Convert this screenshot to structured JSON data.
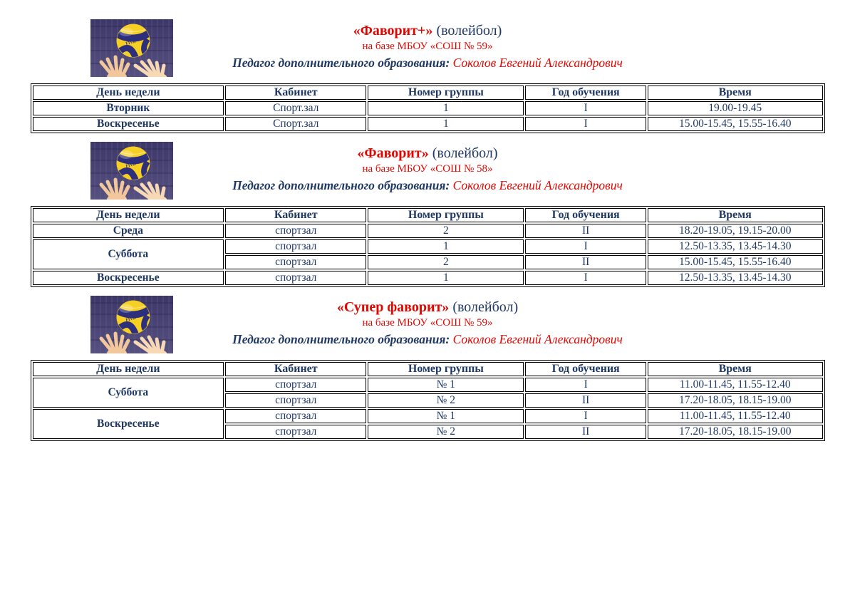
{
  "colors": {
    "navy_text": "#1f3864",
    "red_text": "#e10600",
    "table_border": "#000000",
    "page_background": "#ffffff"
  },
  "image": {
    "name": "volleyball-set-photo",
    "description": "volleyball above two raised hands against net",
    "ball_logo": "FIVB"
  },
  "sections": [
    {
      "title_bold": "«Фаворит+»",
      "title_rest": " (волейбол)",
      "subtitle": "на базе МБОУ «СОШ № 59»",
      "teacher_label": "Педагог дополнительного образования: ",
      "teacher_name": "Соколов Евгений Александрович",
      "table": {
        "headers": [
          "День недели",
          "Кабинет",
          "Номер группы",
          "Год обучения",
          "Время"
        ],
        "rows": [
          {
            "day": "Вторник",
            "rowspan": 1,
            "room": "Спорт.зал",
            "group": "1",
            "year": "I",
            "time": "19.00-19.45"
          },
          {
            "day": "Воскресенье",
            "rowspan": 1,
            "room": "Спорт.зал",
            "group": "1",
            "year": "I",
            "time": "15.00-15.45, 15.55-16.40"
          }
        ]
      }
    },
    {
      "title_bold": "«Фаворит»",
      "title_rest": " (волейбол)",
      "subtitle": "на базе МБОУ «СОШ № 58»",
      "teacher_label": "Педагог дополнительного образования: ",
      "teacher_name": "Соколов Евгений Александрович",
      "table": {
        "headers": [
          "День недели",
          "Кабинет",
          "Номер группы",
          "Год обучения",
          "Время"
        ],
        "rows": [
          {
            "day": "Среда",
            "rowspan": 1,
            "room": "спортзал",
            "group": "2",
            "year": "II",
            "time": "18.20-19.05, 19.15-20.00"
          },
          {
            "day": "Суббота",
            "rowspan": 2,
            "room": "спортзал",
            "group": "1",
            "year": "I",
            "time": "12.50-13.35, 13.45-14.30"
          },
          {
            "room": "спортзал",
            "group": "2",
            "year": "II",
            "time": "15.00-15.45, 15.55-16.40"
          },
          {
            "day": "Воскресенье",
            "rowspan": 1,
            "room": "спортзал",
            "group": "1",
            "year": "I",
            "time": "12.50-13.35, 13.45-14.30"
          }
        ]
      }
    },
    {
      "title_bold": "«Супер фаворит»",
      "title_rest": " (волейбол)",
      "subtitle": "на базе МБОУ «СОШ № 59»",
      "teacher_label": "Педагог дополнительного образования: ",
      "teacher_name": "Соколов Евгений Александрович",
      "table": {
        "headers": [
          "День недели",
          "Кабинет",
          "Номер группы",
          "Год обучения",
          "Время"
        ],
        "rows": [
          {
            "day": "Суббота",
            "rowspan": 2,
            "room": "спортзал",
            "group": "№ 1",
            "year": "I",
            "time": "11.00-11.45, 11.55-12.40"
          },
          {
            "room": "спортзал",
            "group": "№ 2",
            "year": "II",
            "time": "17.20-18.05, 18.15-19.00"
          },
          {
            "day": "Воскресенье",
            "rowspan": 2,
            "room": "спортзал",
            "group": "№ 1",
            "year": "I",
            "time": "11.00-11.45, 11.55-12.40"
          },
          {
            "room": "спортзал",
            "group": "№ 2",
            "year": "II",
            "time": "17.20-18.05, 18.15-19.00"
          }
        ]
      }
    }
  ]
}
